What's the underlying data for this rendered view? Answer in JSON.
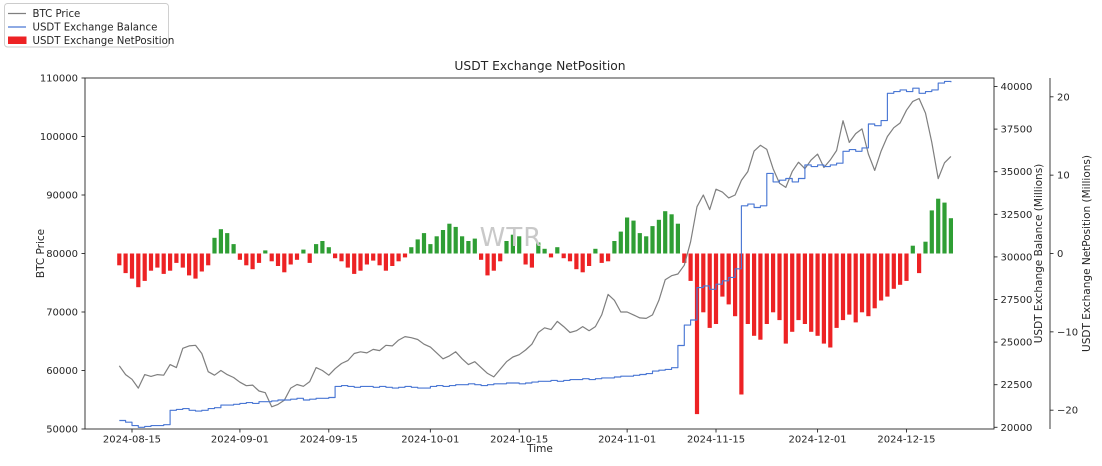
{
  "page": {
    "background": "#ffffff"
  },
  "chart_data": {
    "type": "line+bar",
    "title": "USDT Exchange NetPosition",
    "watermark": "WTR",
    "x": {
      "label": "Time",
      "start_date": "2024-08-13",
      "end_date": "2024-12-22",
      "frequency": "daily",
      "tick_labels": [
        "2024-08-15",
        "2024-09-01",
        "2024-09-15",
        "2024-10-01",
        "2024-10-15",
        "2024-11-01",
        "2024-11-15",
        "2024-12-01",
        "2024-12-15"
      ]
    },
    "axes": {
      "left": {
        "label": "BTC Price",
        "range": [
          50000,
          110000
        ],
        "ticks": [
          {
            "v": 50000,
            "label": "50000"
          },
          {
            "v": 60000,
            "label": "60000"
          },
          {
            "v": 70000,
            "label": "70000"
          },
          {
            "v": 80000,
            "label": "80000"
          },
          {
            "v": 90000,
            "label": "90000"
          },
          {
            "v": 100000,
            "label": "100000"
          },
          {
            "v": 110000,
            "label": "110000"
          }
        ]
      },
      "right_balance": {
        "label": "USDT Exchange Balance (Millions)",
        "range": [
          19900,
          40500
        ],
        "ticks": [
          {
            "v": 20000,
            "label": "20000"
          },
          {
            "v": 22500,
            "label": "22500"
          },
          {
            "v": 25000,
            "label": "25000"
          },
          {
            "v": 27500,
            "label": "27500"
          },
          {
            "v": 30000,
            "label": "30000"
          },
          {
            "v": 32500,
            "label": "32500"
          },
          {
            "v": 35000,
            "label": "35000"
          },
          {
            "v": 37500,
            "label": "37500"
          },
          {
            "v": 40000,
            "label": "40000"
          }
        ]
      },
      "right_netposition": {
        "label": "USDT Exchange NetPosition (Millions)",
        "range": [
          -22.4,
          22.4
        ],
        "ticks": [
          {
            "v": -20,
            "label": "−20"
          },
          {
            "v": -10,
            "label": "−10"
          },
          {
            "v": 0,
            "label": "0"
          },
          {
            "v": 10,
            "label": "10"
          },
          {
            "v": 20,
            "label": "20"
          }
        ]
      }
    },
    "legend": {
      "position": "upper-left",
      "entries": [
        {
          "label": "BTC Price",
          "type": "line",
          "color": "#7f7f7f"
        },
        {
          "label": "USDT Exchange Balance",
          "type": "line",
          "color": "#4a77d4"
        },
        {
          "label": "USDT Exchange NetPosition",
          "type": "patch",
          "color": "#ed2224"
        }
      ]
    },
    "series": [
      {
        "name": "BTC Price",
        "axis": "left",
        "type": "line",
        "color": "#7f7f7f",
        "values": [
          60800,
          59300,
          58500,
          57000,
          59300,
          59000,
          59300,
          59200,
          61000,
          60500,
          63800,
          64200,
          64300,
          62900,
          59800,
          59200,
          60000,
          59300,
          58800,
          58000,
          57400,
          57500,
          56500,
          56200,
          53800,
          54200,
          54900,
          57000,
          57600,
          57300,
          58100,
          60500,
          60000,
          59200,
          60300,
          61200,
          61700,
          62900,
          63200,
          63000,
          63600,
          63400,
          64300,
          64200,
          65200,
          65800,
          65600,
          65300,
          64500,
          64000,
          63000,
          62000,
          62500,
          63200,
          62000,
          61000,
          61500,
          60500,
          59500,
          58900,
          60200,
          61500,
          62300,
          62700,
          63500,
          64500,
          66500,
          67300,
          67000,
          68400,
          67500,
          66500,
          66800,
          67500,
          66800,
          67500,
          69500,
          73000,
          72000,
          70000,
          70000,
          69500,
          69000,
          68900,
          69500,
          72000,
          75500,
          76200,
          76500,
          78000,
          82000,
          88000,
          90000,
          87500,
          91000,
          90500,
          89500,
          90000,
          92500,
          94000,
          97500,
          98500,
          97800,
          94500,
          92000,
          91300,
          94000,
          95600,
          94500,
          96000,
          97000,
          94700,
          96000,
          97600,
          102700,
          99000,
          100500,
          101300,
          97000,
          94200,
          97500,
          100000,
          101500,
          102300,
          104500,
          106000,
          106500,
          104000,
          99000,
          92800,
          95500,
          96600
        ]
      },
      {
        "name": "USDT Exchange Balance",
        "axis": "right_balance",
        "type": "line",
        "style": "step",
        "color": "#4a77d4",
        "values": [
          20400,
          20300,
          20100,
          20000,
          20050,
          20100,
          20100,
          20150,
          21000,
          21050,
          21100,
          21000,
          20950,
          21000,
          21100,
          21150,
          21300,
          21300,
          21350,
          21400,
          21450,
          21400,
          21500,
          21500,
          21550,
          21600,
          21600,
          21650,
          21700,
          21600,
          21650,
          21700,
          21700,
          21750,
          22400,
          22450,
          22400,
          22350,
          22400,
          22400,
          22350,
          22400,
          22350,
          22300,
          22350,
          22400,
          22350,
          22300,
          22300,
          22400,
          22450,
          22400,
          22450,
          22500,
          22500,
          22550,
          22500,
          22450,
          22500,
          22550,
          22550,
          22600,
          22600,
          22550,
          22600,
          22650,
          22700,
          22700,
          22750,
          22700,
          22750,
          22800,
          22800,
          22850,
          22800,
          22850,
          22900,
          22900,
          22950,
          23000,
          23000,
          23050,
          23100,
          23150,
          23300,
          23350,
          23400,
          23500,
          24800,
          26000,
          26300,
          28200,
          28300,
          28100,
          28400,
          28600,
          28800,
          29300,
          33000,
          33100,
          32900,
          33000,
          34900,
          34400,
          34500,
          34600,
          34400,
          34600,
          35400,
          35300,
          35400,
          35300,
          35400,
          35500,
          36200,
          36300,
          36200,
          36400,
          37800,
          37700,
          38000,
          39600,
          39700,
          39800,
          39700,
          39900,
          39600,
          39700,
          39800,
          40200,
          40300,
          40250
        ]
      },
      {
        "name": "USDT Exchange NetPosition",
        "axis": "right_netposition",
        "type": "bar",
        "color_positive": "#2f9e34",
        "color_negative": "#ed2224",
        "values": [
          -1.5,
          -2.5,
          -3.2,
          -4.3,
          -3.5,
          -2.2,
          -1.8,
          -2.6,
          -2.2,
          -1.2,
          -1.8,
          -2.8,
          -3.2,
          -2.3,
          -1.5,
          2.0,
          3.1,
          2.6,
          1.2,
          -0.8,
          -1.5,
          -2.0,
          -1.2,
          0.4,
          -1.0,
          -1.6,
          -2.4,
          -1.4,
          -0.8,
          0.5,
          -1.2,
          1.2,
          1.6,
          0.8,
          -0.6,
          -1.0,
          -1.8,
          -2.6,
          -2.2,
          -1.4,
          -0.9,
          -1.5,
          -2.2,
          -1.6,
          -1.0,
          -0.5,
          0.8,
          1.8,
          2.6,
          1.2,
          2.2,
          3.0,
          3.8,
          3.4,
          2.2,
          1.6,
          1.9,
          -0.8,
          -2.8,
          -2.2,
          -1.0,
          1.6,
          2.4,
          2.2,
          -1.4,
          -1.8,
          1.4,
          0.6,
          -0.5,
          0.8,
          -0.6,
          -1.0,
          -2.0,
          -2.4,
          -1.6,
          0.6,
          -1.2,
          -1.0,
          1.6,
          2.8,
          4.6,
          4.2,
          2.6,
          2.2,
          3.5,
          4.3,
          5.4,
          5.0,
          3.8,
          -1.2,
          -3.5,
          -20.5,
          -7.5,
          -9.5,
          -9.0,
          -5.5,
          -6.5,
          -8.0,
          -18.0,
          -9.0,
          -10.5,
          -11.0,
          -9.0,
          -7.5,
          -8.5,
          -11.5,
          -10.0,
          -8.5,
          -9.0,
          -10.0,
          -10.5,
          -11.5,
          -12.0,
          -9.5,
          -8.5,
          -7.8,
          -8.8,
          -7.5,
          -8.0,
          -7.0,
          -6.0,
          -5.5,
          -4.5,
          -4.0,
          -3.5,
          1.0,
          -2.5,
          1.5,
          5.5,
          7.0,
          6.5,
          4.5
        ]
      }
    ]
  }
}
